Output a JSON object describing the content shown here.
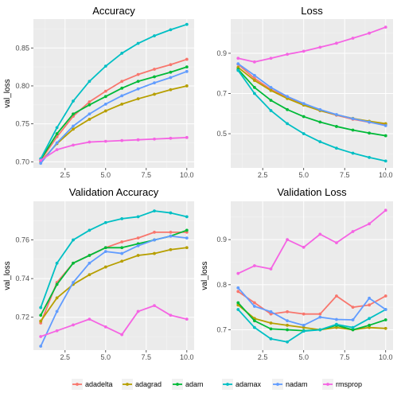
{
  "chart_data": [
    {
      "type": "line",
      "title": "Accuracy",
      "xlabel": "",
      "ylabel": "val_loss",
      "xlim": [
        0.55,
        10.45
      ],
      "ylim": [
        0.692,
        0.888
      ],
      "xticks": [
        2.5,
        5.0,
        7.5,
        10.0
      ],
      "xtick_labels": [
        "2.5",
        "5.0",
        "7.5",
        "10.0"
      ],
      "yticks": [
        0.7,
        0.75,
        0.8,
        0.85
      ],
      "ytick_labels": [
        "0.70",
        "0.75",
        "0.80",
        "0.85"
      ],
      "x": [
        1,
        2,
        3,
        4,
        5,
        6,
        7,
        8,
        9,
        10
      ],
      "series": [
        {
          "name": "adadelta",
          "values": [
            0.702,
            0.733,
            0.76,
            0.779,
            0.793,
            0.806,
            0.815,
            0.822,
            0.828,
            0.835
          ]
        },
        {
          "name": "adagrad",
          "values": [
            0.7,
            0.724,
            0.743,
            0.756,
            0.767,
            0.776,
            0.783,
            0.789,
            0.795,
            0.8
          ]
        },
        {
          "name": "adam",
          "values": [
            0.703,
            0.737,
            0.763,
            0.775,
            0.786,
            0.797,
            0.806,
            0.812,
            0.818,
            0.825
          ]
        },
        {
          "name": "adamax",
          "values": [
            0.704,
            0.745,
            0.78,
            0.806,
            0.826,
            0.843,
            0.856,
            0.866,
            0.874,
            0.881
          ]
        },
        {
          "name": "nadam",
          "values": [
            0.698,
            0.725,
            0.747,
            0.763,
            0.776,
            0.787,
            0.796,
            0.804,
            0.811,
            0.819
          ]
        },
        {
          "name": "rmsprop",
          "values": [
            0.702,
            0.716,
            0.722,
            0.726,
            0.727,
            0.728,
            0.729,
            0.73,
            0.731,
            0.732
          ]
        }
      ]
    },
    {
      "type": "line",
      "title": "Loss",
      "xlabel": "",
      "ylabel": "",
      "xlim": [
        0.55,
        10.45
      ],
      "ylim": [
        0.33,
        1.07
      ],
      "xticks": [
        2.5,
        5.0,
        7.5,
        10.0
      ],
      "xtick_labels": [
        "2.5",
        "5.0",
        "7.5",
        "10.0"
      ],
      "yticks": [
        0.5,
        0.7,
        0.9
      ],
      "ytick_labels": [
        "0.5",
        "0.7",
        "0.9"
      ],
      "x": [
        1,
        2,
        3,
        4,
        5,
        6,
        7,
        8,
        9,
        10
      ],
      "series": [
        {
          "name": "adadelta",
          "values": [
            0.845,
            0.775,
            0.72,
            0.68,
            0.645,
            0.615,
            0.592,
            0.572,
            0.557,
            0.545
          ]
        },
        {
          "name": "adagrad",
          "values": [
            0.83,
            0.765,
            0.715,
            0.675,
            0.642,
            0.615,
            0.594,
            0.576,
            0.562,
            0.55
          ]
        },
        {
          "name": "adam",
          "values": [
            0.82,
            0.73,
            0.666,
            0.62,
            0.585,
            0.558,
            0.536,
            0.518,
            0.503,
            0.49
          ]
        },
        {
          "name": "adamax",
          "values": [
            0.815,
            0.7,
            0.615,
            0.55,
            0.5,
            0.46,
            0.428,
            0.403,
            0.382,
            0.364
          ]
        },
        {
          "name": "nadam",
          "values": [
            0.848,
            0.79,
            0.73,
            0.685,
            0.65,
            0.62,
            0.595,
            0.575,
            0.558,
            0.54
          ]
        },
        {
          "name": "rmsprop",
          "values": [
            0.875,
            0.857,
            0.875,
            0.895,
            0.91,
            0.93,
            0.95,
            0.975,
            1.0,
            1.03
          ]
        }
      ]
    },
    {
      "type": "line",
      "title": "Validation Accuracy",
      "xlabel": "",
      "ylabel": "val_loss",
      "xlim": [
        0.55,
        10.45
      ],
      "ylim": [
        0.703,
        0.78
      ],
      "xticks": [
        2.5,
        5.0,
        7.5,
        10.0
      ],
      "xtick_labels": [
        "2.5",
        "5.0",
        "7.5",
        "10.0"
      ],
      "yticks": [
        0.72,
        0.74,
        0.76
      ],
      "ytick_labels": [
        "0.72",
        "0.74",
        "0.76"
      ],
      "x": [
        1,
        2,
        3,
        4,
        5,
        6,
        7,
        8,
        9,
        10
      ],
      "series": [
        {
          "name": "adadelta",
          "values": [
            0.717,
            0.738,
            0.748,
            0.752,
            0.756,
            0.759,
            0.761,
            0.764,
            0.764,
            0.764
          ]
        },
        {
          "name": "adagrad",
          "values": [
            0.718,
            0.73,
            0.737,
            0.742,
            0.746,
            0.749,
            0.752,
            0.753,
            0.755,
            0.756
          ]
        },
        {
          "name": "adam",
          "values": [
            0.721,
            0.737,
            0.748,
            0.752,
            0.756,
            0.756,
            0.758,
            0.76,
            0.762,
            0.765
          ]
        },
        {
          "name": "adamax",
          "values": [
            0.725,
            0.748,
            0.76,
            0.765,
            0.769,
            0.771,
            0.772,
            0.775,
            0.774,
            0.772
          ]
        },
        {
          "name": "nadam",
          "values": [
            0.705,
            0.723,
            0.738,
            0.748,
            0.754,
            0.753,
            0.757,
            0.76,
            0.762,
            0.761
          ]
        },
        {
          "name": "rmsprop",
          "values": [
            0.71,
            0.713,
            0.716,
            0.719,
            0.715,
            0.711,
            0.723,
            0.726,
            0.721,
            0.719
          ]
        }
      ]
    },
    {
      "type": "line",
      "title": "Validation Loss",
      "xlabel": "",
      "ylabel": "val_loss",
      "xlim": [
        0.55,
        10.45
      ],
      "ylim": [
        0.655,
        0.985
      ],
      "xticks": [
        2.5,
        5.0,
        7.5,
        10.0
      ],
      "xtick_labels": [
        "2.5",
        "5.0",
        "7.5",
        "10.0"
      ],
      "yticks": [
        0.7,
        0.8,
        0.9
      ],
      "ytick_labels": [
        "0.7",
        "0.8",
        "0.9"
      ],
      "x": [
        1,
        2,
        3,
        4,
        5,
        6,
        7,
        8,
        9,
        10
      ],
      "series": [
        {
          "name": "adadelta",
          "values": [
            0.785,
            0.76,
            0.735,
            0.74,
            0.735,
            0.735,
            0.775,
            0.75,
            0.755,
            0.775
          ]
        },
        {
          "name": "adagrad",
          "values": [
            0.755,
            0.725,
            0.715,
            0.71,
            0.705,
            0.7,
            0.705,
            0.7,
            0.705,
            0.703
          ]
        },
        {
          "name": "adam",
          "values": [
            0.76,
            0.72,
            0.702,
            0.7,
            0.698,
            0.7,
            0.71,
            0.7,
            0.71,
            0.722
          ]
        },
        {
          "name": "adamax",
          "values": [
            0.745,
            0.705,
            0.68,
            0.673,
            0.697,
            0.7,
            0.712,
            0.705,
            0.725,
            0.745
          ]
        },
        {
          "name": "nadam",
          "values": [
            0.793,
            0.752,
            0.74,
            0.72,
            0.71,
            0.728,
            0.723,
            0.722,
            0.77,
            0.745
          ]
        },
        {
          "name": "rmsprop",
          "values": [
            0.825,
            0.842,
            0.835,
            0.9,
            0.883,
            0.912,
            0.893,
            0.918,
            0.935,
            0.965
          ]
        }
      ]
    }
  ],
  "legend": {
    "placement": "bottom",
    "items": [
      "adadelta",
      "adagrad",
      "adam",
      "adamax",
      "nadam",
      "rmsprop"
    ]
  },
  "colors": {
    "adadelta": "#f8766d",
    "adagrad": "#b79f00",
    "adam": "#00ba38",
    "adamax": "#00bfc4",
    "nadam": "#619cff",
    "rmsprop": "#f564e3"
  }
}
